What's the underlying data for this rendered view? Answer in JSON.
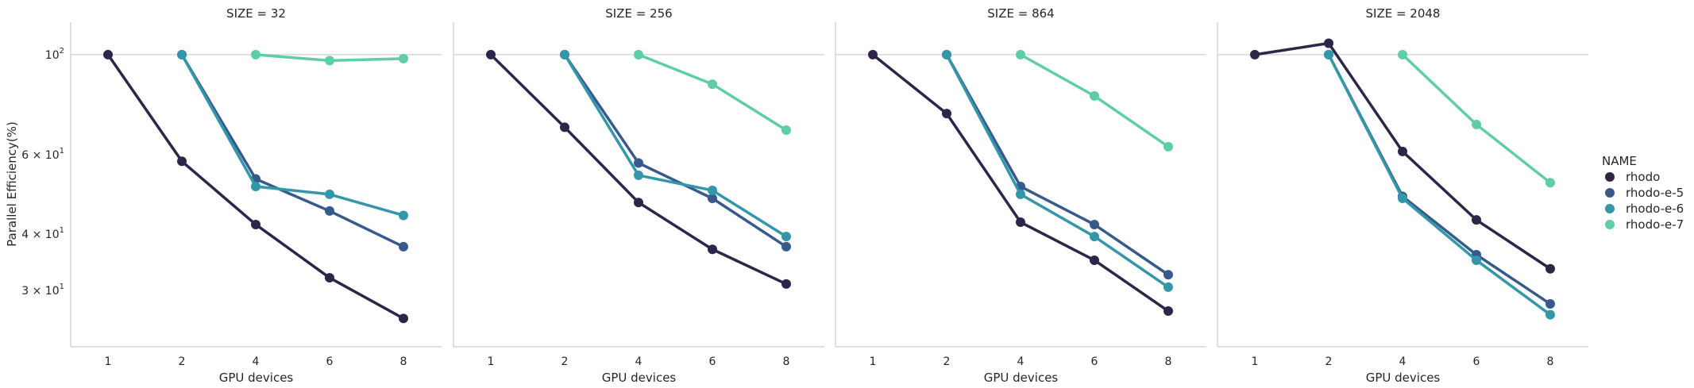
{
  "chart_data": {
    "type": "line",
    "ylabel": "Parallel Efficiency(%)",
    "xlabel": "GPU devices",
    "categories": [
      "1",
      "2",
      "4",
      "6",
      "8"
    ],
    "y_scale": "log",
    "ylim": [
      22.5,
      118
    ],
    "y_ticks": [
      {
        "value": 100,
        "base": "10",
        "exp": "2",
        "mult": ""
      },
      {
        "value": 60,
        "base": "10",
        "exp": "1",
        "mult": "6 × "
      },
      {
        "value": 40,
        "base": "10",
        "exp": "1",
        "mult": "4 × "
      },
      {
        "value": 30,
        "base": "10",
        "exp": "1",
        "mult": "3 × "
      }
    ],
    "grid": "horizontal",
    "legend": {
      "title": "NAME",
      "placement": "right",
      "entries": [
        "rhodo",
        "rhodo-e-5",
        "rhodo-e-6",
        "rhodo-e-7"
      ]
    },
    "colors": {
      "rhodo": "#2e2548",
      "rhodo-e-5": "#375a8c",
      "rhodo-e-6": "#3497a9",
      "rhodo-e-7": "#60cea5"
    },
    "panels": [
      {
        "title": "SIZE = 32",
        "series": [
          {
            "name": "rhodo",
            "values": [
              100,
              58,
              42,
              32,
              26
            ]
          },
          {
            "name": "rhodo-e-5",
            "values": [
              null,
              100,
              53,
              45,
              37.5
            ]
          },
          {
            "name": "rhodo-e-6",
            "values": [
              null,
              100,
              51,
              49,
              44
            ]
          },
          {
            "name": "rhodo-e-7",
            "values": [
              null,
              null,
              100,
              97,
              98
            ]
          }
        ]
      },
      {
        "title": "SIZE = 256",
        "series": [
          {
            "name": "rhodo",
            "values": [
              100,
              69,
              47,
              37,
              31
            ]
          },
          {
            "name": "rhodo-e-5",
            "values": [
              null,
              100,
              57.5,
              48,
              37.5
            ]
          },
          {
            "name": "rhodo-e-6",
            "values": [
              null,
              100,
              54,
              50,
              39.5
            ]
          },
          {
            "name": "rhodo-e-7",
            "values": [
              null,
              null,
              100,
              86,
              68
            ]
          }
        ]
      },
      {
        "title": "SIZE = 864",
        "series": [
          {
            "name": "rhodo",
            "values": [
              100,
              74,
              42.5,
              35,
              27
            ]
          },
          {
            "name": "rhodo-e-5",
            "values": [
              null,
              100,
              51,
              42,
              32.5
            ]
          },
          {
            "name": "rhodo-e-6",
            "values": [
              null,
              100,
              49,
              39.5,
              30.5
            ]
          },
          {
            "name": "rhodo-e-7",
            "values": [
              null,
              null,
              100,
              81,
              62.5
            ]
          }
        ]
      },
      {
        "title": "SIZE = 2048",
        "series": [
          {
            "name": "rhodo",
            "values": [
              100,
              106,
              61,
              43,
              33.5
            ]
          },
          {
            "name": "rhodo-e-5",
            "values": [
              null,
              100,
              48.5,
              36,
              28
            ]
          },
          {
            "name": "rhodo-e-6",
            "values": [
              null,
              100,
              48,
              35,
              26.5
            ]
          },
          {
            "name": "rhodo-e-7",
            "values": [
              null,
              null,
              100,
              70,
              52
            ]
          }
        ]
      }
    ]
  }
}
